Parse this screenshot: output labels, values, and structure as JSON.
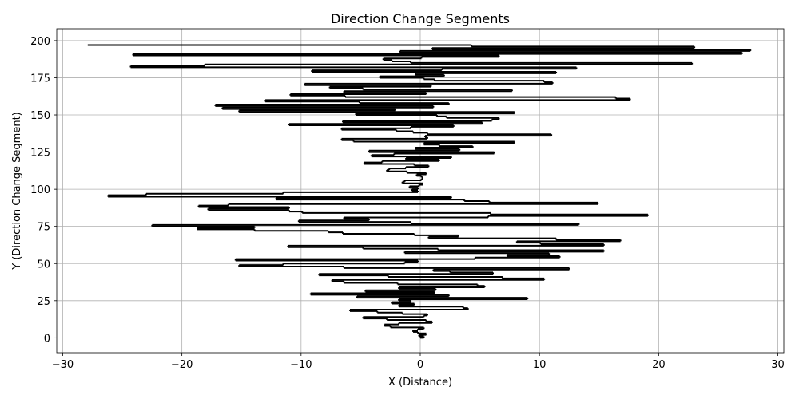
{
  "chart_data": {
    "type": "line",
    "title": "Direction Change Segments",
    "xlabel": "X (Distance)",
    "ylabel": "Y (Direction Change Segment)",
    "xlim": [
      -30.5,
      30.5
    ],
    "ylim": [
      -10,
      208
    ],
    "xticks": [
      -30,
      -20,
      -10,
      0,
      10,
      20,
      30
    ],
    "yticks": [
      0,
      25,
      50,
      75,
      100,
      125,
      150,
      175,
      200
    ],
    "grid": true,
    "line_color": "#000000",
    "segments": [
      {
        "y": 0,
        "x0": 0.0,
        "x1": 0.3
      },
      {
        "y": 1,
        "x0": 0.3,
        "x1": -0.1
      },
      {
        "y": 2,
        "x0": -0.1,
        "x1": 0.5
      },
      {
        "y": 3,
        "x0": 0.5,
        "x1": -0.2
      },
      {
        "y": 4,
        "x0": -0.2,
        "x1": -0.6
      },
      {
        "y": 5,
        "x0": -0.6,
        "x1": -0.2
      },
      {
        "y": 6,
        "x0": -0.2,
        "x1": 0.3
      },
      {
        "y": 7,
        "x0": 0.3,
        "x1": -2.5
      },
      {
        "y": 8,
        "x0": -2.5,
        "x1": -3.0
      },
      {
        "y": 9,
        "x0": -3.0,
        "x1": -1.8
      },
      {
        "y": 10,
        "x0": -1.8,
        "x1": 1.0
      },
      {
        "y": 11,
        "x0": 1.0,
        "x1": 0.5
      },
      {
        "y": 12,
        "x0": 0.5,
        "x1": -2.8
      },
      {
        "y": 13,
        "x0": -2.8,
        "x1": -4.8
      },
      {
        "y": 14,
        "x0": -4.8,
        "x1": 0.3
      },
      {
        "y": 15,
        "x0": 0.3,
        "x1": 0.6
      },
      {
        "y": 16,
        "x0": 0.6,
        "x1": -1.5
      },
      {
        "y": 17,
        "x0": -1.5,
        "x1": -3.6
      },
      {
        "y": 18,
        "x0": -3.6,
        "x1": -5.9
      },
      {
        "y": 19,
        "x0": -5.9,
        "x1": 4.0
      },
      {
        "y": 20,
        "x0": 4.0,
        "x1": 3.6
      },
      {
        "y": 21,
        "x0": 3.6,
        "x1": -1.8
      },
      {
        "y": 22,
        "x0": -1.8,
        "x1": -0.5
      },
      {
        "y": 23,
        "x0": -0.5,
        "x1": -2.4
      },
      {
        "y": 24,
        "x0": -2.4,
        "x1": -0.8
      },
      {
        "y": 25,
        "x0": -0.8,
        "x1": -1.8
      },
      {
        "y": 26,
        "x0": -1.8,
        "x1": 9.0
      },
      {
        "y": 27,
        "x0": 9.0,
        "x1": -5.3
      },
      {
        "y": 28,
        "x0": -5.3,
        "x1": 2.4
      },
      {
        "y": 29,
        "x0": 2.4,
        "x1": -9.2
      },
      {
        "y": 30,
        "x0": -9.2,
        "x1": 1.2
      },
      {
        "y": 31,
        "x0": 1.2,
        "x1": -4.6
      },
      {
        "y": 32,
        "x0": -4.6,
        "x1": 1.3
      },
      {
        "y": 33,
        "x0": 1.3,
        "x1": -1.8
      },
      {
        "y": 34,
        "x0": -1.8,
        "x1": 5.4
      },
      {
        "y": 35,
        "x0": 5.4,
        "x1": 4.8
      },
      {
        "y": 36,
        "x0": 4.8,
        "x1": -1.9
      },
      {
        "y": 37,
        "x0": -1.9,
        "x1": -6.4
      },
      {
        "y": 38,
        "x0": -6.4,
        "x1": -7.4
      },
      {
        "y": 39,
        "x0": -7.4,
        "x1": 10.4
      },
      {
        "y": 40,
        "x0": 10.4,
        "x1": 6.9
      },
      {
        "y": 41,
        "x0": 6.9,
        "x1": -2.7
      },
      {
        "y": 42,
        "x0": -2.7,
        "x1": -8.5
      },
      {
        "y": 43,
        "x0": -8.5,
        "x1": 6.1
      },
      {
        "y": 44,
        "x0": 6.1,
        "x1": 2.5
      },
      {
        "y": 45,
        "x0": 2.5,
        "x1": 1.1
      },
      {
        "y": 46,
        "x0": 1.1,
        "x1": 12.5
      },
      {
        "y": 47,
        "x0": 12.5,
        "x1": -6.4
      },
      {
        "y": 48,
        "x0": -6.4,
        "x1": -15.2
      },
      {
        "y": 49,
        "x0": -15.2,
        "x1": -11.5
      },
      {
        "y": 50,
        "x0": -11.5,
        "x1": -1.3
      },
      {
        "y": 51,
        "x0": -1.3,
        "x1": -0.2
      },
      {
        "y": 52,
        "x0": -0.2,
        "x1": -15.5
      },
      {
        "y": 53,
        "x0": -15.5,
        "x1": 4.6
      },
      {
        "y": 54,
        "x0": 4.6,
        "x1": 11.7
      },
      {
        "y": 55,
        "x0": 11.7,
        "x1": 7.3
      },
      {
        "y": 56,
        "x0": 7.3,
        "x1": 10.8
      },
      {
        "y": 57,
        "x0": 10.8,
        "x1": -1.3
      },
      {
        "y": 58,
        "x0": -1.3,
        "x1": 15.4
      },
      {
        "y": 59,
        "x0": 15.4,
        "x1": 1.5
      },
      {
        "y": 60,
        "x0": 1.5,
        "x1": -4.8
      },
      {
        "y": 61,
        "x0": -4.8,
        "x1": -11.1
      },
      {
        "y": 62,
        "x0": -11.1,
        "x1": 15.4
      },
      {
        "y": 63,
        "x0": 15.4,
        "x1": 10.1
      },
      {
        "y": 64,
        "x0": 10.1,
        "x1": 8.1
      },
      {
        "y": 65,
        "x0": 8.1,
        "x1": 16.8
      },
      {
        "y": 66,
        "x0": 16.8,
        "x1": 11.4
      },
      {
        "y": 67,
        "x0": 11.4,
        "x1": 0.7
      },
      {
        "y": 68,
        "x0": 0.7,
        "x1": 3.2
      },
      {
        "y": 69,
        "x0": 3.2,
        "x1": -0.5
      },
      {
        "y": 70,
        "x0": -0.5,
        "x1": -6.5
      },
      {
        "y": 71,
        "x0": -6.5,
        "x1": -7.7
      },
      {
        "y": 72,
        "x0": -7.7,
        "x1": -13.9
      },
      {
        "y": 73,
        "x0": -13.9,
        "x1": -18.7
      },
      {
        "y": 74,
        "x0": -18.7,
        "x1": -13.9
      },
      {
        "y": 75,
        "x0": -13.9,
        "x1": -22.5
      },
      {
        "y": 76,
        "x0": -22.5,
        "x1": 13.3
      },
      {
        "y": 77,
        "x0": 13.3,
        "x1": -0.8
      },
      {
        "y": 78,
        "x0": -0.8,
        "x1": -10.2
      },
      {
        "y": 79,
        "x0": -10.2,
        "x1": -4.3
      },
      {
        "y": 80,
        "x0": -4.3,
        "x1": -6.4
      },
      {
        "y": 81,
        "x0": -6.4,
        "x1": 5.7
      },
      {
        "y": 82,
        "x0": 5.7,
        "x1": 19.1
      },
      {
        "y": 83,
        "x0": 19.1,
        "x1": 5.9
      },
      {
        "y": 84,
        "x0": 5.9,
        "x1": -9.9
      },
      {
        "y": 85,
        "x0": -9.9,
        "x1": -11.0
      },
      {
        "y": 86,
        "x0": -11.0,
        "x1": -17.8
      },
      {
        "y": 87,
        "x0": -17.8,
        "x1": -11.0
      },
      {
        "y": 88,
        "x0": -11.0,
        "x1": -18.6
      },
      {
        "y": 89,
        "x0": -18.6,
        "x1": -16.1
      },
      {
        "y": 90,
        "x0": -16.1,
        "x1": 14.9
      },
      {
        "y": 91,
        "x0": 14.9,
        "x1": 5.8
      },
      {
        "y": 92,
        "x0": 5.8,
        "x1": 3.7
      },
      {
        "y": 93,
        "x0": 3.7,
        "x1": -12.1
      },
      {
        "y": 94,
        "x0": -12.1,
        "x1": 2.6
      },
      {
        "y": 95,
        "x0": 2.6,
        "x1": -26.2
      },
      {
        "y": 96,
        "x0": -26.2,
        "x1": -23.0
      },
      {
        "y": 97,
        "x0": -23.0,
        "x1": -11.5
      },
      {
        "y": 98,
        "x0": -11.5,
        "x1": -0.2
      },
      {
        "y": 99,
        "x0": -0.2,
        "x1": -0.7
      },
      {
        "y": 100,
        "x0": -0.7,
        "x1": -0.2
      },
      {
        "y": 101,
        "x0": -0.2,
        "x1": -0.9
      },
      {
        "y": 102,
        "x0": -0.9,
        "x1": -0.1
      },
      {
        "y": 103,
        "x0": -0.1,
        "x1": 0.2
      },
      {
        "y": 104,
        "x0": 0.2,
        "x1": -1.5
      },
      {
        "y": 105,
        "x0": -1.5,
        "x1": -1.3
      },
      {
        "y": 106,
        "x0": -1.3,
        "x1": 0.1
      },
      {
        "y": 107,
        "x0": 0.1,
        "x1": 0.2
      },
      {
        "y": 108,
        "x0": 0.2,
        "x1": 0.1
      },
      {
        "y": 109,
        "x0": 0.1,
        "x1": -0.3
      },
      {
        "y": 110,
        "x0": -0.3,
        "x1": 0.5
      },
      {
        "y": 111,
        "x0": 0.5,
        "x1": -1.1
      },
      {
        "y": 112,
        "x0": -1.1,
        "x1": -2.8
      },
      {
        "y": 113,
        "x0": -2.8,
        "x1": -2.6
      },
      {
        "y": 114,
        "x0": -2.6,
        "x1": -1.2
      },
      {
        "y": 115,
        "x0": -1.2,
        "x1": 0.7
      },
      {
        "y": 116,
        "x0": 0.7,
        "x1": -0.5
      },
      {
        "y": 117,
        "x0": -0.5,
        "x1": -4.7
      },
      {
        "y": 118,
        "x0": -4.7,
        "x1": -3.2
      },
      {
        "y": 119,
        "x0": -3.2,
        "x1": 1.6
      },
      {
        "y": 120,
        "x0": 1.6,
        "x1": -1.2
      },
      {
        "y": 121,
        "x0": -1.2,
        "x1": 2.6
      },
      {
        "y": 122,
        "x0": 2.6,
        "x1": -4.1
      },
      {
        "y": 123,
        "x0": -4.1,
        "x1": -2.2
      },
      {
        "y": 124,
        "x0": -2.2,
        "x1": 6.2
      },
      {
        "y": 125,
        "x0": 6.2,
        "x1": -4.3
      },
      {
        "y": 126,
        "x0": -4.3,
        "x1": 3.3
      },
      {
        "y": 127,
        "x0": 3.3,
        "x1": -0.4
      },
      {
        "y": 128,
        "x0": -0.4,
        "x1": 4.4
      },
      {
        "y": 129,
        "x0": 4.4,
        "x1": 1.6
      },
      {
        "y": 130,
        "x0": 1.6,
        "x1": 0.3
      },
      {
        "y": 131,
        "x0": 0.3,
        "x1": 7.9
      },
      {
        "y": 132,
        "x0": 7.9,
        "x1": -5.6
      },
      {
        "y": 133,
        "x0": -5.6,
        "x1": -6.6
      },
      {
        "y": 134,
        "x0": -6.6,
        "x1": 0.6
      },
      {
        "y": 135,
        "x0": 0.6,
        "x1": 0.4
      },
      {
        "y": 136,
        "x0": 0.4,
        "x1": 11.0
      },
      {
        "y": 137,
        "x0": 11.0,
        "x1": 0.6
      },
      {
        "y": 138,
        "x0": 0.6,
        "x1": -0.6
      },
      {
        "y": 139,
        "x0": -0.6,
        "x1": -2.0
      },
      {
        "y": 140,
        "x0": -2.0,
        "x1": -6.6
      },
      {
        "y": 141,
        "x0": -6.6,
        "x1": -0.8
      },
      {
        "y": 142,
        "x0": -0.8,
        "x1": 2.8
      },
      {
        "y": 143,
        "x0": 2.8,
        "x1": -11.0
      },
      {
        "y": 144,
        "x0": -11.0,
        "x1": 5.2
      },
      {
        "y": 145,
        "x0": 5.2,
        "x1": -6.5
      },
      {
        "y": 146,
        "x0": -6.5,
        "x1": 6.0
      },
      {
        "y": 147,
        "x0": 6.0,
        "x1": 6.6
      },
      {
        "y": 148,
        "x0": 6.6,
        "x1": 2.2
      },
      {
        "y": 149,
        "x0": 2.2,
        "x1": 1.4
      },
      {
        "y": 150,
        "x0": 1.4,
        "x1": -5.4
      },
      {
        "y": 151,
        "x0": -5.4,
        "x1": 7.9
      },
      {
        "y": 152,
        "x0": 7.9,
        "x1": -15.2
      },
      {
        "y": 153,
        "x0": -15.2,
        "x1": -2.1
      },
      {
        "y": 154,
        "x0": -2.1,
        "x1": -16.6
      },
      {
        "y": 155,
        "x0": -16.6,
        "x1": 1.1
      },
      {
        "y": 156,
        "x0": 1.1,
        "x1": -17.2
      },
      {
        "y": 157,
        "x0": -17.2,
        "x1": 2.4
      },
      {
        "y": 158,
        "x0": 2.4,
        "x1": -5.1
      },
      {
        "y": 159,
        "x0": -5.1,
        "x1": -13.0
      },
      {
        "y": 160,
        "x0": -13.0,
        "x1": 17.6
      },
      {
        "y": 161,
        "x0": 17.6,
        "x1": 16.4
      },
      {
        "y": 162,
        "x0": 16.4,
        "x1": -6.3
      },
      {
        "y": 163,
        "x0": -6.3,
        "x1": -10.9
      },
      {
        "y": 164,
        "x0": -10.9,
        "x1": 0.5
      },
      {
        "y": 165,
        "x0": 0.5,
        "x1": -6.4
      },
      {
        "y": 166,
        "x0": -6.4,
        "x1": 7.7
      },
      {
        "y": 167,
        "x0": 7.7,
        "x1": -4.8
      },
      {
        "y": 168,
        "x0": -4.8,
        "x1": -7.6
      },
      {
        "y": 169,
        "x0": -7.6,
        "x1": 0.9
      },
      {
        "y": 170,
        "x0": 0.9,
        "x1": -9.7
      },
      {
        "y": 171,
        "x0": -9.7,
        "x1": 11.1
      },
      {
        "y": 172,
        "x0": 11.1,
        "x1": 10.4
      },
      {
        "y": 173,
        "x0": 10.4,
        "x1": 1.2
      },
      {
        "y": 174,
        "x0": 1.2,
        "x1": 0.3
      },
      {
        "y": 175,
        "x0": 0.3,
        "x1": -3.4
      },
      {
        "y": 176,
        "x0": -3.4,
        "x1": 2.0
      },
      {
        "y": 177,
        "x0": 2.0,
        "x1": -0.4
      },
      {
        "y": 178,
        "x0": -0.4,
        "x1": 11.4
      },
      {
        "y": 179,
        "x0": 11.4,
        "x1": -9.1
      },
      {
        "y": 180,
        "x0": -9.1,
        "x1": 1.8
      },
      {
        "y": 181,
        "x0": 1.8,
        "x1": 13.1
      },
      {
        "y": 182,
        "x0": 13.1,
        "x1": -24.3
      },
      {
        "y": 183,
        "x0": -24.3,
        "x1": -18.1
      },
      {
        "y": 184,
        "x0": -18.1,
        "x1": 22.8
      },
      {
        "y": 185,
        "x0": 22.8,
        "x1": -0.8
      },
      {
        "y": 186,
        "x0": -0.8,
        "x1": -2.4
      },
      {
        "y": 187,
        "x0": -2.4,
        "x1": -3.1
      },
      {
        "y": 188,
        "x0": -3.1,
        "x1": 0.1
      },
      {
        "y": 189,
        "x0": 0.1,
        "x1": 6.6
      },
      {
        "y": 190,
        "x0": 6.6,
        "x1": -24.1
      },
      {
        "y": 191,
        "x0": -24.1,
        "x1": 27.0
      },
      {
        "y": 192,
        "x0": 27.0,
        "x1": -1.7
      },
      {
        "y": 193,
        "x0": -1.7,
        "x1": 27.7
      },
      {
        "y": 194,
        "x0": 27.7,
        "x1": 1.0
      },
      {
        "y": 195,
        "x0": 1.0,
        "x1": 23.0
      },
      {
        "y": 196,
        "x0": 23.0,
        "x1": 4.3
      },
      {
        "y": 197,
        "x0": 4.3,
        "x1": -27.9
      }
    ]
  }
}
